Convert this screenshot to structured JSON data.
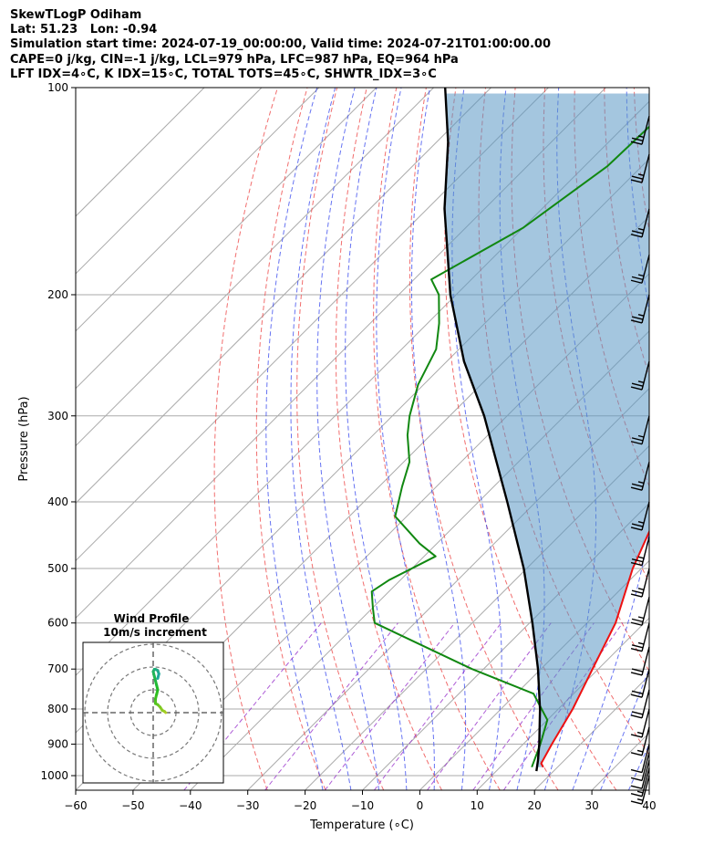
{
  "header": {
    "line1": "SkewTLogP Odiham",
    "line2": "Lat: 51.23   Lon: -0.94",
    "line3": "Simulation start time: 2024-07-19_00:00:00, Valid time: 2024-07-21T01:00:00.00",
    "line4": "CAPE=0 j/kg, CIN=-1 j/kg, LCL=979 hPa, LFC=987 hPa, EQ=964 hPa",
    "line5": "LFT IDX=4$^\\circ$C, K IDX=15$^\\circ$C, TOTAL TOTS=45$^\\circ$C, SHWTR_IDX=3$^\\circ$C"
  },
  "header_display": {
    "line5": "LFT IDX=4∘C, K IDX=15∘C, TOTAL TOTS=45∘C, SHWTR_IDX=3∘C"
  },
  "chart_data": {
    "type": "skewt-logp",
    "xlabel": "Temperature (∘C)",
    "ylabel": "Pressure (hPa)",
    "xlim": [
      -60,
      40
    ],
    "ylim": [
      1050,
      100
    ],
    "x_ticks": [
      -60,
      -50,
      -40,
      -30,
      -20,
      -10,
      0,
      10,
      20,
      30,
      40
    ],
    "x_tick_labels": [
      "−60",
      "−50",
      "−40",
      "−30",
      "−20",
      "−10",
      "0",
      "10",
      "20",
      "30",
      "40"
    ],
    "y_ticks": [
      1000,
      900,
      800,
      700,
      600,
      500,
      400,
      300,
      200,
      100
    ],
    "y_scale": "log",
    "grid": true,
    "colors": {
      "temperature": "#ee1111",
      "dewpoint": "#118811",
      "parcel": "#000000",
      "cape_fill": "#5a97c5",
      "dry_adiabats": "#ee5555",
      "moist_adiabats": "#3344ee",
      "mixing_ratio": "#9933cc",
      "isotherms": "#999999"
    },
    "series": [
      {
        "key": "temperature",
        "pressure": [
          972,
          960,
          900,
          800,
          700,
          600,
          500,
          420,
          360,
          300,
          260,
          210,
          200,
          180,
          160,
          150,
          140,
          130,
          120,
          110,
          100
        ],
        "values": [
          17.5,
          16.5,
          15.0,
          12.5,
          9.0,
          5.0,
          -1.5,
          -6.5,
          -13.5,
          -22.5,
          -29.0,
          -33.5,
          -37.0,
          -42.0,
          -46.5,
          -50.0,
          -52.0,
          -54.0,
          -56.0,
          -58.0,
          -60.0
        ]
      },
      {
        "key": "dewpoint",
        "pressure": [
          972,
          900,
          830,
          760,
          700,
          600,
          570,
          540,
          520,
          480,
          460,
          420,
          380,
          350,
          320,
          300,
          270,
          240,
          220,
          200,
          190,
          160,
          130,
          110,
          100
        ],
        "values": [
          15.5,
          13.0,
          10.0,
          3.0,
          -12.0,
          -37.0,
          -40.0,
          -43.0,
          -42.0,
          -38.0,
          -43.0,
          -52.0,
          -56.0,
          -59.0,
          -64.0,
          -67.0,
          -71.0,
          -74.0,
          -78.0,
          -83.0,
          -87.0,
          -80.0,
          -76.0,
          -75.5,
          -75.0
        ]
      },
      {
        "key": "parcel",
        "pressure": [
          985,
          950,
          900,
          800,
          700,
          600,
          500,
          400,
          300,
          250,
          200,
          150,
          120,
          100
        ],
        "values": [
          17.0,
          15.4,
          12.8,
          6.8,
          -0.5,
          -9.5,
          -20.5,
          -35.0,
          -54.0,
          -67.0,
          -81.0,
          -97.0,
          -108.0,
          -118.0
        ]
      }
    ],
    "wind_barbs": [
      {
        "pressure": 1000,
        "speed_kt": 15
      },
      {
        "pressure": 975,
        "speed_kt": 15
      },
      {
        "pressure": 950,
        "speed_kt": 10
      },
      {
        "pressure": 925,
        "speed_kt": 10
      },
      {
        "pressure": 900,
        "speed_kt": 10
      },
      {
        "pressure": 850,
        "speed_kt": 15
      },
      {
        "pressure": 800,
        "speed_kt": 15
      },
      {
        "pressure": 750,
        "speed_kt": 20
      },
      {
        "pressure": 700,
        "speed_kt": 20
      },
      {
        "pressure": 650,
        "speed_kt": 20
      },
      {
        "pressure": 600,
        "speed_kt": 25
      },
      {
        "pressure": 550,
        "speed_kt": 25
      },
      {
        "pressure": 500,
        "speed_kt": 25
      },
      {
        "pressure": 450,
        "speed_kt": 25
      },
      {
        "pressure": 400,
        "speed_kt": 25
      },
      {
        "pressure": 350,
        "speed_kt": 25
      },
      {
        "pressure": 300,
        "speed_kt": 25
      },
      {
        "pressure": 250,
        "speed_kt": 25
      },
      {
        "pressure": 200,
        "speed_kt": 25
      },
      {
        "pressure": 175,
        "speed_kt": 25
      },
      {
        "pressure": 150,
        "speed_kt": 25
      },
      {
        "pressure": 125,
        "speed_kt": 25
      },
      {
        "pressure": 110,
        "speed_kt": 25
      }
    ],
    "hodograph": {
      "title": "Wind Profile",
      "subtitle": "10m/s increment",
      "u": [
        5.5,
        5.0,
        4.0,
        3.0,
        2.0,
        1.0,
        1.0,
        1.5,
        2.0,
        1.5,
        1.0,
        0.5,
        0.0,
        0.5,
        1.0,
        2.0,
        2.5,
        2.0
      ],
      "v": [
        0.0,
        0.5,
        1.0,
        2.5,
        3.5,
        4.0,
        6.0,
        8.0,
        10.0,
        12.0,
        14.0,
        16.0,
        18.0,
        19.0,
        19.0,
        18.5,
        17.0,
        15.0
      ]
    }
  }
}
